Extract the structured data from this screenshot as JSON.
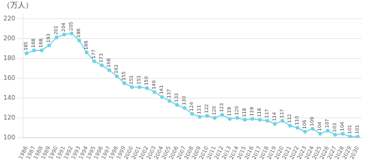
{
  "chart_data": {
    "type": "line",
    "ylabel": "（万人）",
    "x": [
      1986,
      1987,
      1988,
      1989,
      1990,
      1991,
      1992,
      1993,
      1994,
      1995,
      1996,
      1997,
      1998,
      1999,
      2000,
      2001,
      2002,
      2003,
      2004,
      2005,
      2006,
      2007,
      2008,
      2009,
      2010,
      2011,
      2012,
      2013,
      2014,
      2015,
      2016,
      2017,
      2018,
      2019,
      2020,
      2021,
      2022,
      2023,
      2024,
      2025,
      2026,
      2027,
      2028,
      2029,
      2030
    ],
    "values": [
      185,
      188,
      188,
      193,
      201,
      204,
      205,
      198,
      186,
      177,
      173,
      168,
      162,
      155,
      151,
      151,
      150,
      146,
      141,
      137,
      133,
      130,
      124,
      121,
      122,
      120,
      123,
      119,
      120,
      118,
      119,
      118,
      117,
      114,
      117,
      112,
      110,
      106,
      109,
      104,
      107,
      103,
      104,
      101,
      101
    ],
    "color": "#6dd3e8",
    "marker": "circle",
    "data_labels": true,
    "xlim": [
      1985.5,
      2030.5
    ],
    "xticks": [
      1986,
      1987,
      1988,
      1989,
      1990,
      1991,
      1992,
      1993,
      1994,
      1995,
      1996,
      1997,
      1998,
      1999,
      2000,
      2001,
      2002,
      2003,
      2004,
      2005,
      2006,
      2007,
      2008,
      2009,
      2010,
      2011,
      2012,
      2013,
      2014,
      2015,
      2016,
      2017,
      2018,
      2019,
      2020,
      2021,
      2022,
      2023,
      2024,
      2025,
      2026,
      2027,
      2028,
      2029,
      2030
    ],
    "ylim": [
      100,
      225
    ],
    "yticks": [
      100,
      120,
      140,
      160,
      180,
      200,
      220
    ],
    "grid": true
  }
}
